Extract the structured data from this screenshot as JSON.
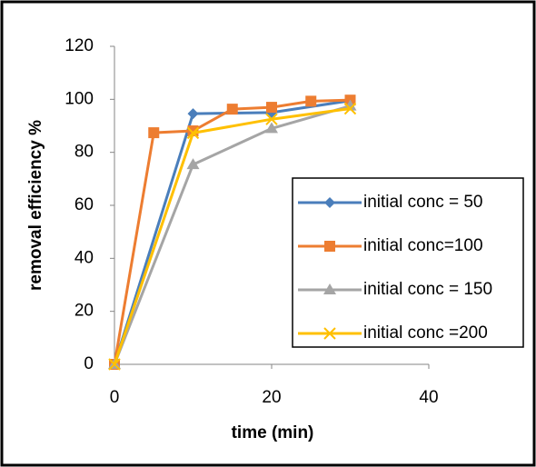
{
  "chart_data": {
    "type": "line",
    "x_label": "time (min)",
    "y_label": "removal efficiency %",
    "xlim": [
      0,
      40
    ],
    "xticks": [
      0,
      20,
      40
    ],
    "ylim": [
      0,
      120
    ],
    "yticks": [
      0,
      20,
      40,
      60,
      80,
      100,
      120
    ],
    "grid": false,
    "legend": "right",
    "series": [
      {
        "name": "initial conc = 50",
        "color": "#4a7ebb",
        "marker": "diamond",
        "x": [
          0,
          10,
          20,
          30
        ],
        "values": [
          0,
          94.6,
          95,
          99.5
        ]
      },
      {
        "name": "initial conc=100",
        "color": "#ed7d31",
        "marker": "square",
        "x": [
          0,
          5,
          10,
          15,
          20,
          25,
          30
        ],
        "values": [
          0,
          87.4,
          88.1,
          96.3,
          97,
          99.3,
          99.7
        ]
      },
      {
        "name": "initial conc = 150",
        "color": "#a5a5a5",
        "marker": "triangle",
        "x": [
          0,
          10,
          20,
          30
        ],
        "values": [
          0,
          75.4,
          89,
          97.5
        ]
      },
      {
        "name": "initial conc =200",
        "color": "#ffc000",
        "marker": "x",
        "x": [
          0,
          10,
          20,
          30
        ],
        "values": [
          0,
          87.3,
          92.5,
          96.5
        ]
      }
    ]
  }
}
